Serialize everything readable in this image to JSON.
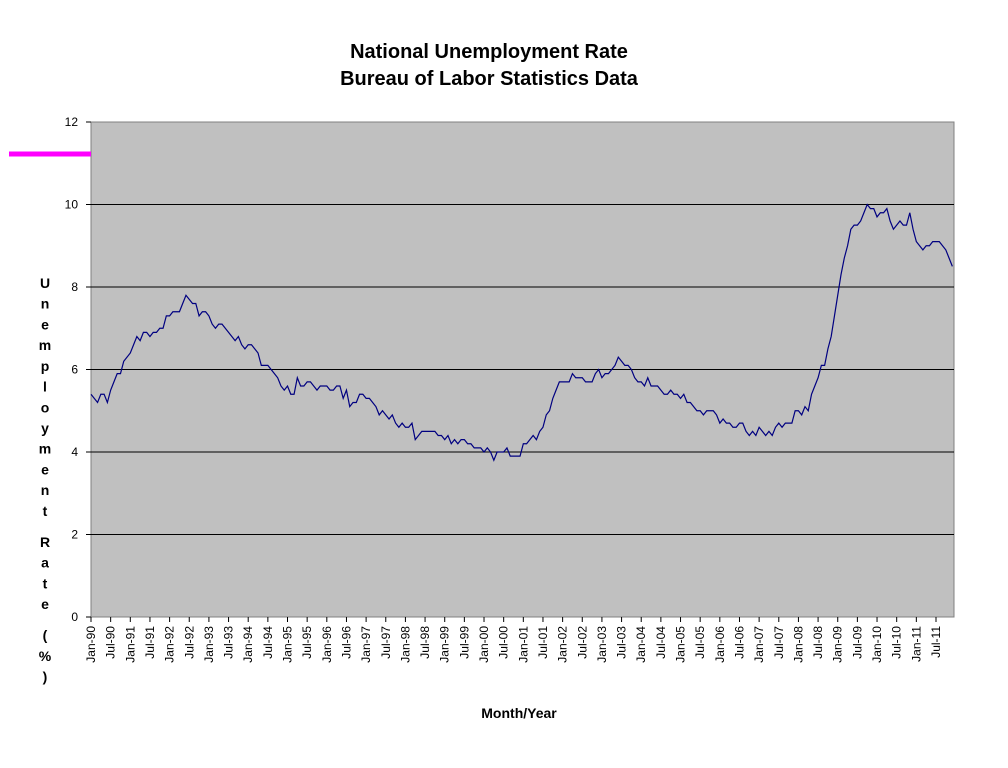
{
  "chart_data": {
    "type": "line",
    "title": "National Unemployment Rate",
    "subtitle": "Bureau of Labor Statistics Data",
    "xlabel": "Month/Year",
    "ylabel": "Unemployment Rate (%)",
    "ylim": [
      0,
      12
    ],
    "yticks": [
      0,
      2,
      4,
      6,
      8,
      10,
      12
    ],
    "grid": true,
    "legend": "none",
    "plot_background": "#c0c0c0",
    "line_color": "#000080",
    "accent_mark_color": "#ff00ff",
    "x_tick_labels": [
      "Jan-90",
      "Jul-90",
      "Jan-91",
      "Jul-91",
      "Jan-92",
      "Jul-92",
      "Jan-93",
      "Jul-93",
      "Jan-94",
      "Jul-94",
      "Jan-95",
      "Jul-95",
      "Jan-96",
      "Jul-96",
      "Jan-97",
      "Jul-97",
      "Jan-98",
      "Jul-98",
      "Jan-99",
      "Jul-99",
      "Jan-00",
      "Jul-00",
      "Jan-01",
      "Jul-01",
      "Jan-02",
      "Jul-02",
      "Jan-03",
      "Jul-03",
      "Jan-04",
      "Jul-04",
      "Jan-05",
      "Jul-05",
      "Jan-06",
      "Jul-06",
      "Jan-07",
      "Jul-07",
      "Jan-08",
      "Jul-08",
      "Jan-09",
      "Jul-09",
      "Jan-10",
      "Jul-10",
      "Jan-11",
      "Jul-11"
    ],
    "series": [
      {
        "start": "Jan-90",
        "end": "Dec-11",
        "values": [
          5.4,
          5.3,
          5.2,
          5.4,
          5.4,
          5.2,
          5.5,
          5.7,
          5.9,
          5.9,
          6.2,
          6.3,
          6.4,
          6.6,
          6.8,
          6.7,
          6.9,
          6.9,
          6.8,
          6.9,
          6.9,
          7.0,
          7.0,
          7.3,
          7.3,
          7.4,
          7.4,
          7.4,
          7.6,
          7.8,
          7.7,
          7.6,
          7.6,
          7.3,
          7.4,
          7.4,
          7.3,
          7.1,
          7.0,
          7.1,
          7.1,
          7.0,
          6.9,
          6.8,
          6.7,
          6.8,
          6.6,
          6.5,
          6.6,
          6.6,
          6.5,
          6.4,
          6.1,
          6.1,
          6.1,
          6.0,
          5.9,
          5.8,
          5.6,
          5.5,
          5.6,
          5.4,
          5.4,
          5.8,
          5.6,
          5.6,
          5.7,
          5.7,
          5.6,
          5.5,
          5.6,
          5.6,
          5.6,
          5.5,
          5.5,
          5.6,
          5.6,
          5.3,
          5.5,
          5.1,
          5.2,
          5.2,
          5.4,
          5.4,
          5.3,
          5.3,
          5.2,
          5.1,
          4.9,
          5.0,
          4.9,
          4.8,
          4.9,
          4.7,
          4.6,
          4.7,
          4.6,
          4.6,
          4.7,
          4.3,
          4.4,
          4.5,
          4.5,
          4.5,
          4.5,
          4.5,
          4.4,
          4.4,
          4.3,
          4.4,
          4.2,
          4.3,
          4.2,
          4.3,
          4.3,
          4.2,
          4.2,
          4.1,
          4.1,
          4.1,
          4.0,
          4.1,
          4.0,
          3.8,
          4.0,
          4.0,
          4.0,
          4.1,
          3.9,
          3.9,
          3.9,
          3.9,
          4.2,
          4.2,
          4.3,
          4.4,
          4.3,
          4.5,
          4.6,
          4.9,
          5.0,
          5.3,
          5.5,
          5.7,
          5.7,
          5.7,
          5.7,
          5.9,
          5.8,
          5.8,
          5.8,
          5.7,
          5.7,
          5.7,
          5.9,
          6.0,
          5.8,
          5.9,
          5.9,
          6.0,
          6.1,
          6.3,
          6.2,
          6.1,
          6.1,
          6.0,
          5.8,
          5.7,
          5.7,
          5.6,
          5.8,
          5.6,
          5.6,
          5.6,
          5.5,
          5.4,
          5.4,
          5.5,
          5.4,
          5.4,
          5.3,
          5.4,
          5.2,
          5.2,
          5.1,
          5.0,
          5.0,
          4.9,
          5.0,
          5.0,
          5.0,
          4.9,
          4.7,
          4.8,
          4.7,
          4.7,
          4.6,
          4.6,
          4.7,
          4.7,
          4.5,
          4.4,
          4.5,
          4.4,
          4.6,
          4.5,
          4.4,
          4.5,
          4.4,
          4.6,
          4.7,
          4.6,
          4.7,
          4.7,
          4.7,
          5.0,
          5.0,
          4.9,
          5.1,
          5.0,
          5.4,
          5.6,
          5.8,
          6.1,
          6.1,
          6.5,
          6.8,
          7.3,
          7.8,
          8.3,
          8.7,
          9.0,
          9.4,
          9.5,
          9.5,
          9.6,
          9.8,
          10.0,
          9.9,
          9.9,
          9.7,
          9.8,
          9.8,
          9.9,
          9.6,
          9.4,
          9.5,
          9.6,
          9.5,
          9.5,
          9.8,
          9.4,
          9.1,
          9.0,
          8.9,
          9.0,
          9.0,
          9.1,
          9.1,
          9.1,
          9.0,
          8.9,
          8.7,
          8.5
        ]
      }
    ]
  }
}
